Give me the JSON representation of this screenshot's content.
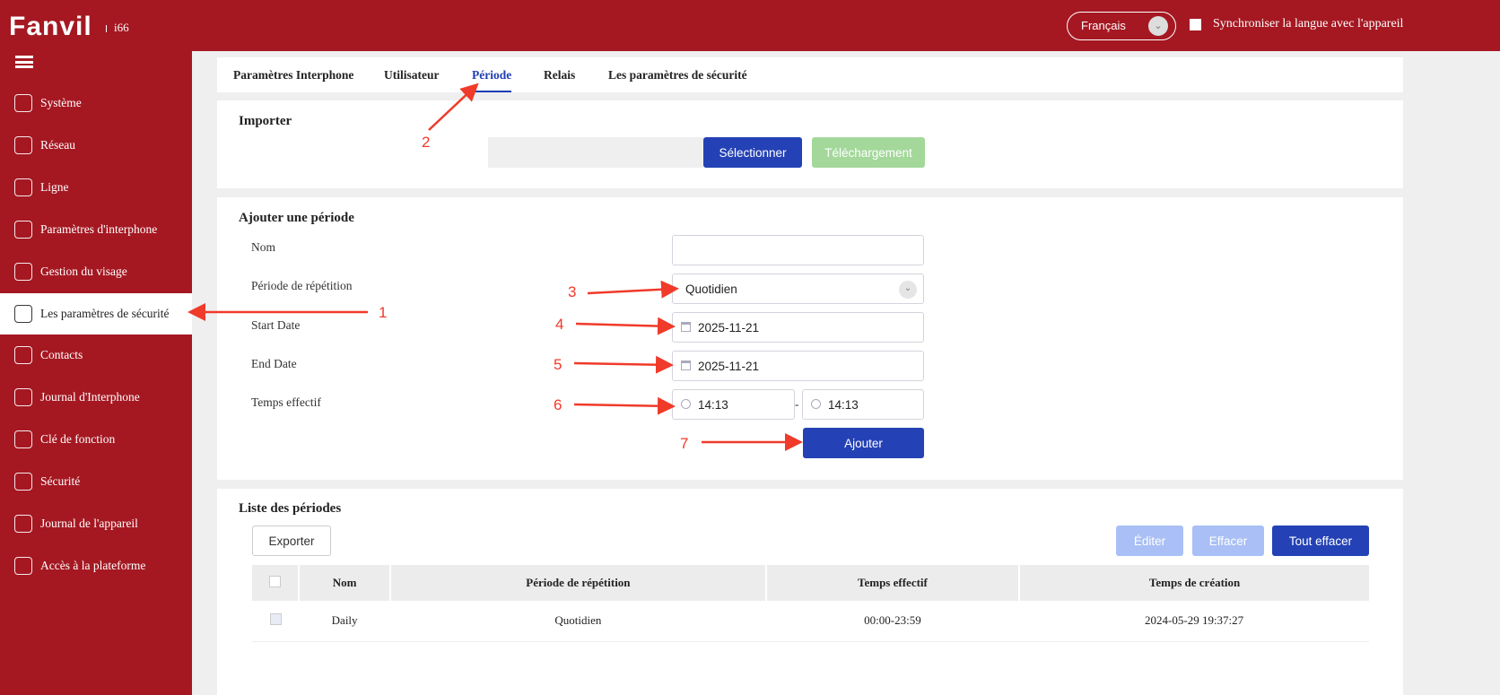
{
  "header": {
    "brand": "Fanvil",
    "model": "i66",
    "language": "Français",
    "sync_label": "Synchroniser la langue avec l'appareil",
    "accent": "#a51822"
  },
  "sidebar": {
    "items": [
      {
        "label": "Système",
        "icon": "home-icon"
      },
      {
        "label": "Réseau",
        "icon": "globe-icon"
      },
      {
        "label": "Ligne",
        "icon": "sim-icon"
      },
      {
        "label": "Paramètres d'interphone",
        "icon": "gear-icon"
      },
      {
        "label": "Gestion du visage",
        "icon": "face-device-icon"
      },
      {
        "label": "Les paramètres de sécurité",
        "icon": "shield-gear-icon",
        "active": true
      },
      {
        "label": "Contacts",
        "icon": "contacts-icon"
      },
      {
        "label": "Journal d'Interphone",
        "icon": "log-icon"
      },
      {
        "label": "Clé de fonction",
        "icon": "keypad-icon"
      },
      {
        "label": "Sécurité",
        "icon": "shield-plus-icon"
      },
      {
        "label": "Journal de l'appareil",
        "icon": "document-icon"
      },
      {
        "label": "Accès à la plateforme",
        "icon": "sliders-icon"
      }
    ]
  },
  "tabs": [
    "Paramètres Interphone",
    "Utilisateur",
    "Période",
    "Relais",
    "Les paramètres de sécurité"
  ],
  "importer": {
    "title": "Importer",
    "select": "Sélectionner",
    "upload": "Téléchargement"
  },
  "add": {
    "title": "Ajouter une période",
    "name_label": "Nom",
    "name_value": "",
    "repeat_label": "Période de répétition",
    "repeat_value": "Quotidien",
    "start_label": "Start Date",
    "start_value": "2025-11-21",
    "end_label": "End Date",
    "end_value": "2025-11-21",
    "time_label": "Temps effectif",
    "time_from": "14:13",
    "time_sep": "-",
    "time_to": "14:13",
    "add_button": "Ajouter"
  },
  "list": {
    "title": "Liste des périodes",
    "export": "Exporter",
    "edit": "Éditer",
    "delete": "Effacer",
    "delete_all": "Tout effacer",
    "columns": [
      "Nom",
      "Période de répétition",
      "Temps effectif",
      "Temps de création"
    ],
    "rows": [
      [
        "Daily",
        "Quotidien",
        "00:00-23:59",
        "2024-05-29 19:37:27"
      ]
    ]
  },
  "annotations": [
    "1",
    "2",
    "3",
    "4",
    "5",
    "6",
    "7"
  ]
}
